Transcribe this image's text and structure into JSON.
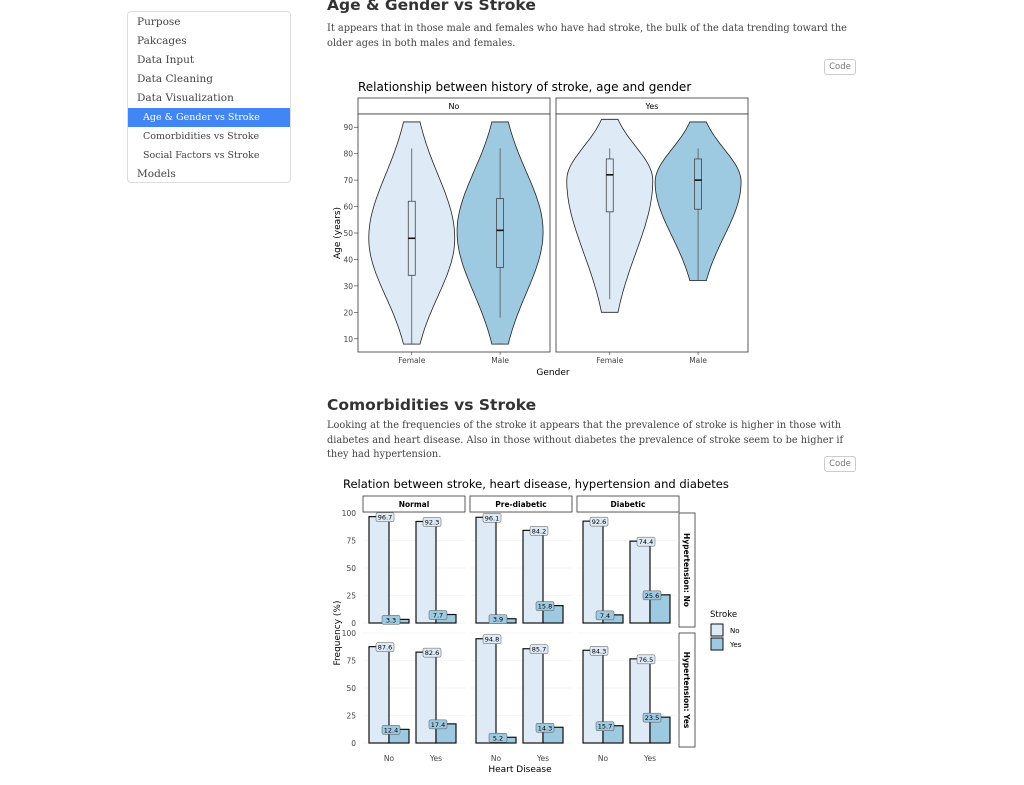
{
  "toc": {
    "items": [
      {
        "label": "Purpose",
        "level": 1,
        "active": false
      },
      {
        "label": "Pakcages",
        "level": 1,
        "active": false
      },
      {
        "label": "Data Input",
        "level": 1,
        "active": false
      },
      {
        "label": "Data Cleaning",
        "level": 1,
        "active": false
      },
      {
        "label": "Data Visualization",
        "level": 1,
        "active": false
      },
      {
        "label": "Age & Gender vs Stroke",
        "level": 2,
        "active": true
      },
      {
        "label": "Comorbidities vs Stroke",
        "level": 2,
        "active": false
      },
      {
        "label": "Social Factors vs Stroke",
        "level": 2,
        "active": false
      },
      {
        "label": "Models",
        "level": 1,
        "active": false
      }
    ]
  },
  "section1": {
    "title": "Age & Gender vs Stroke",
    "text": "It appears that in those male and females who have had stroke, the bulk of the data trending toward the older ages in both males and females.",
    "code_label": "Code"
  },
  "section2": {
    "title": "Comorbidities vs Stroke",
    "text": "Looking at the frequencies of the stroke it appears that the prevalence of stroke is higher in those with diabetes and heart disease. Also in those without diabetes the prevalence of stroke seem to be higher if they had hypertension.",
    "code_label": "Code"
  },
  "colors": {
    "no": "#deebf7",
    "yes": "#9ecae1",
    "active": "#4285f4"
  },
  "chart_data": [
    {
      "type": "violin",
      "title": "Relationship between history of stroke, age and gender",
      "xlabel": "Gender",
      "ylabel": "Age (years)",
      "ylim": [
        5,
        95
      ],
      "yticks": [
        10,
        20,
        30,
        40,
        50,
        60,
        70,
        80,
        90
      ],
      "facets": [
        "No",
        "Yes"
      ],
      "categories": [
        "Female",
        "Male"
      ],
      "series": [
        {
          "facet": "No",
          "gender": "Female",
          "color": "no",
          "min": 8,
          "max": 92,
          "q1": 34,
          "median": 48,
          "q3": 62,
          "whisker_low": 8,
          "whisker_high": 82
        },
        {
          "facet": "No",
          "gender": "Male",
          "color": "yes",
          "min": 8,
          "max": 92,
          "q1": 37,
          "median": 51,
          "q3": 63,
          "whisker_low": 18,
          "whisker_high": 82
        },
        {
          "facet": "Yes",
          "gender": "Female",
          "color": "no",
          "min": 20,
          "max": 93,
          "q1": 58,
          "median": 72,
          "q3": 78,
          "whisker_low": 25,
          "whisker_high": 82
        },
        {
          "facet": "Yes",
          "gender": "Male",
          "color": "yes",
          "min": 32,
          "max": 92,
          "q1": 59,
          "median": 70,
          "q3": 78,
          "whisker_low": 32,
          "whisker_high": 82
        }
      ]
    },
    {
      "type": "bar",
      "title": "Relation between stroke, heart disease, hypertension and diabetes",
      "xlabel": "Heart Disease",
      "ylabel": "Frequency (%)",
      "ylim": [
        0,
        100
      ],
      "yticks": [
        0,
        25,
        50,
        75,
        100
      ],
      "columns": [
        "Normal",
        "Pre-diabetic",
        "Diabetic"
      ],
      "rows": [
        "Hypertension: No",
        "Hypertension: Yes"
      ],
      "categories": [
        "No",
        "Yes"
      ],
      "legend_title": "Stroke",
      "legend": [
        "No",
        "Yes"
      ],
      "panels": [
        {
          "row": 0,
          "col": 0,
          "no": [
            96.7,
            92.3
          ],
          "yes": [
            3.3,
            7.7
          ]
        },
        {
          "row": 0,
          "col": 1,
          "no": [
            96.1,
            84.2
          ],
          "yes": [
            3.9,
            15.8
          ]
        },
        {
          "row": 0,
          "col": 2,
          "no": [
            92.6,
            74.4
          ],
          "yes": [
            7.4,
            25.6
          ]
        },
        {
          "row": 1,
          "col": 0,
          "no": [
            87.6,
            82.6
          ],
          "yes": [
            12.4,
            17.4
          ]
        },
        {
          "row": 1,
          "col": 1,
          "no": [
            94.8,
            85.7
          ],
          "yes": [
            5.2,
            14.3
          ]
        },
        {
          "row": 1,
          "col": 2,
          "no": [
            84.3,
            76.5
          ],
          "yes": [
            15.7,
            23.5
          ]
        }
      ]
    }
  ]
}
